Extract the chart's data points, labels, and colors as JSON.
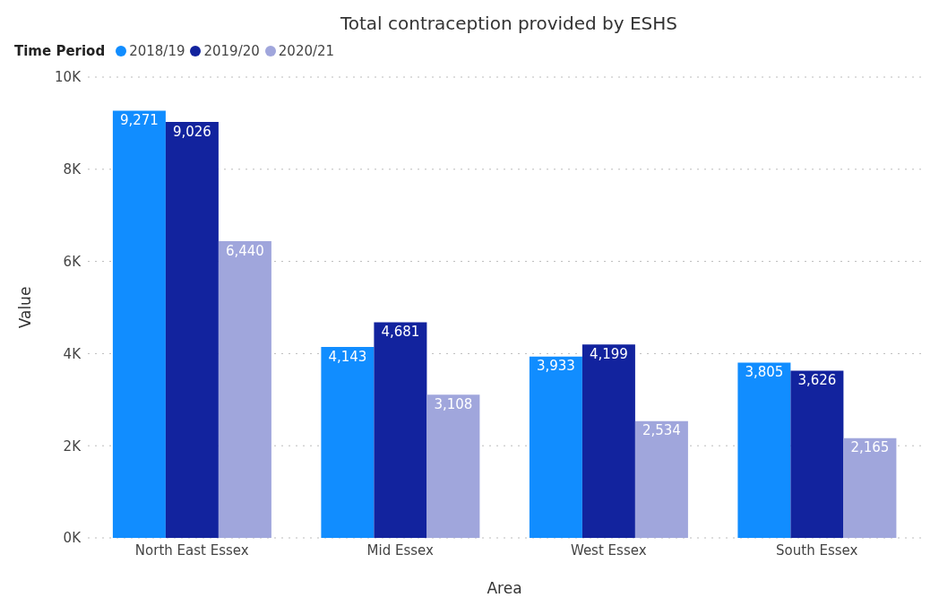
{
  "chart_data": {
    "type": "bar",
    "title": "Total contraception provided by ESHS",
    "xlabel": "Area",
    "ylabel": "Value",
    "legend_title": "Time Period",
    "categories": [
      "North East Essex",
      "Mid Essex",
      "West Essex",
      "South Essex"
    ],
    "series": [
      {
        "name": "2018/19",
        "color": "#118dff",
        "values": [
          9271,
          4143,
          3933,
          3805
        ],
        "value_labels": [
          "9,271",
          "4,143",
          "3,933",
          "3,805"
        ]
      },
      {
        "name": "2019/20",
        "color": "#12239e",
        "values": [
          9026,
          4681,
          4199,
          3626
        ],
        "value_labels": [
          "9,026",
          "4,681",
          "4,199",
          "3,626"
        ]
      },
      {
        "name": "2020/21",
        "color": "#a0a6dc",
        "values": [
          6440,
          3108,
          2534,
          2165
        ],
        "value_labels": [
          "6,440",
          "3,108",
          "2,534",
          "2,165"
        ]
      }
    ],
    "ylim": [
      0,
      10000
    ],
    "yticks": [
      {
        "value": 0,
        "label": "0K"
      },
      {
        "value": 2000,
        "label": "2K"
      },
      {
        "value": 4000,
        "label": "4K"
      },
      {
        "value": 6000,
        "label": "6K"
      },
      {
        "value": 8000,
        "label": "8K"
      },
      {
        "value": 10000,
        "label": "10K"
      }
    ],
    "grid": "y",
    "legend": "top left"
  }
}
